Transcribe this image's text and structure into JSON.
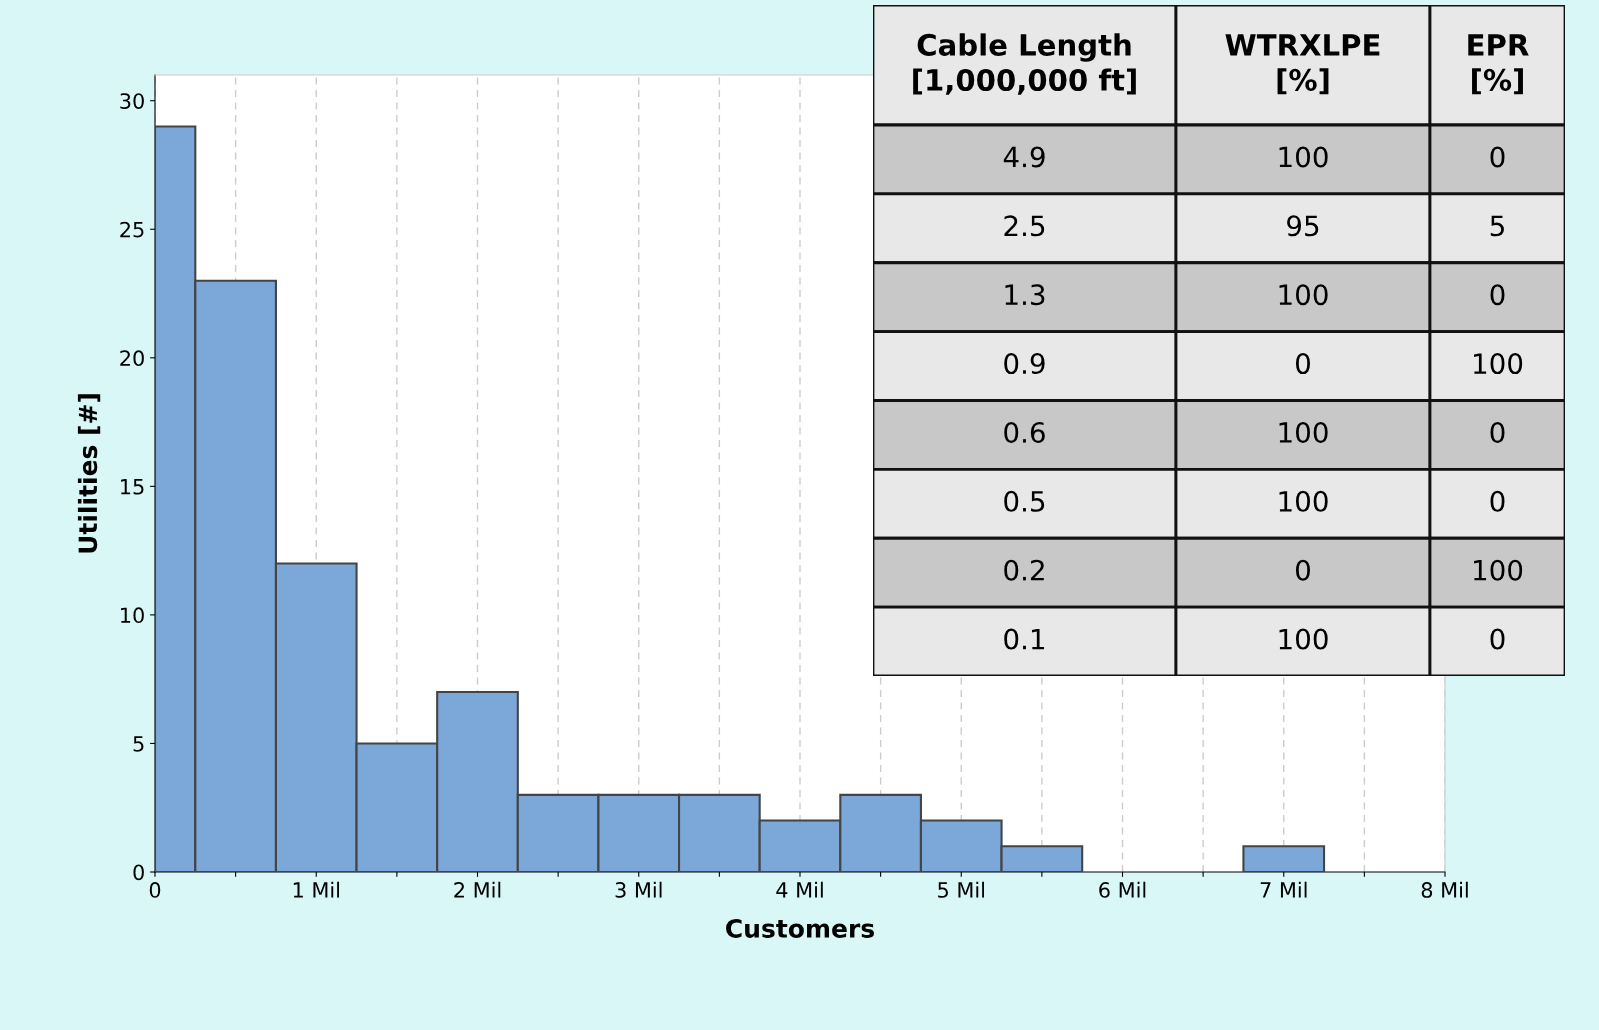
{
  "chart_data": [
    {
      "type": "histogram",
      "xlabel": "Customers",
      "ylabel": "Utilities [#]",
      "bins": [
        0,
        0.25,
        0.75,
        1.25,
        1.75,
        2.25,
        2.75,
        3.25,
        3.75,
        4.25,
        4.75,
        5.25,
        5.75,
        6.75,
        7.25
      ],
      "values": [
        29,
        23,
        12,
        5,
        7,
        3,
        3,
        3,
        2,
        3,
        2,
        1,
        0,
        1
      ],
      "color": "#7ba7d9",
      "xlim": [
        0,
        8
      ],
      "ylim": [
        0,
        31
      ],
      "xticks": [
        0,
        {
          "value": 0.5,
          "label": null
        },
        {
          "value": 1,
          "label": "1 Mil"
        },
        {
          "value": 1.5,
          "label": null
        },
        {
          "value": 2,
          "label": "2 Mil"
        },
        {
          "value": 2.5,
          "label": null
        },
        {
          "value": 3,
          "label": "3 Mil"
        },
        {
          "value": 3.5,
          "label": null
        },
        {
          "value": 4,
          "label": "4 Mil"
        },
        {
          "value": 4.5,
          "label": null
        },
        {
          "value": 5,
          "label": "5 Mil"
        },
        {
          "value": 5.5,
          "label": null
        },
        {
          "value": 6,
          "label": "6 Mil"
        },
        {
          "value": 6.5,
          "label": null
        },
        {
          "value": 7,
          "label": "7 Mil"
        },
        {
          "value": 7.5,
          "label": null
        },
        {
          "value": 8,
          "label": "8 Mil"
        }
      ],
      "yticks": [
        0,
        5,
        10,
        15,
        20,
        25,
        30
      ],
      "grid": "x"
    },
    {
      "type": "other",
      "categories": [
        "Cable Length\n[1,000,000 ft]",
        "WTRXLPE\n[%]",
        "EPR\n[%]"
      ],
      "cell_labels": [
        [
          "4.9",
          "100",
          "0"
        ],
        [
          "2.5",
          "95",
          "5"
        ],
        [
          "1.3",
          "100",
          "0"
        ],
        [
          "0.9",
          "0",
          "100"
        ],
        [
          "0.6",
          "100",
          "0"
        ],
        [
          "0.5",
          "100",
          "0"
        ],
        [
          "0.2",
          "0",
          "100"
        ],
        [
          "0.1",
          "100",
          "0"
        ]
      ]
    }
  ]
}
